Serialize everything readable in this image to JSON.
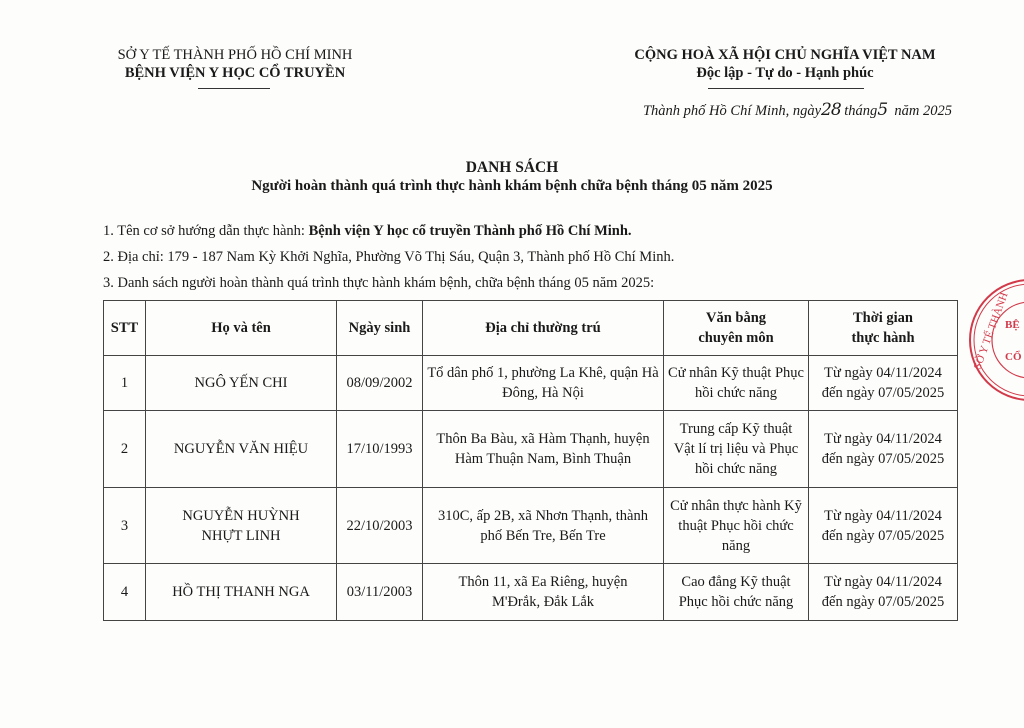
{
  "header": {
    "left_line1": "SỞ Y TẾ THÀNH PHỐ HỒ CHÍ MINH",
    "left_line2": "BỆNH VIỆN Y HỌC CỔ TRUYỀN",
    "right_line1": "CỘNG HOÀ XÃ HỘI CHỦ NGHĨA VIỆT NAM",
    "right_line2": "Độc lập - Tự do - Hạnh phúc",
    "date_prefix": "Thành phố Hồ Chí Minh, ngày",
    "date_day": "28",
    "date_month_label": "tháng",
    "date_month": "5",
    "date_year": "năm 2025"
  },
  "title": {
    "main": "DANH SÁCH",
    "subtitle": "Người hoàn thành quá trình thực hành khám bệnh chữa bệnh tháng 05 năm 2025"
  },
  "items": {
    "item1_label": "1. Tên cơ sở hướng dẫn thực hành: ",
    "item1_value": "Bệnh viện Y học cổ truyền Thành phố Hồ Chí Minh.",
    "item2": "2. Địa chỉ: 179 - 187 Nam Kỳ Khởi Nghĩa, Phường Võ Thị Sáu, Quận 3, Thành phố Hồ Chí Minh.",
    "item3": "3. Danh sách người hoàn thành quá trình thực hành khám bệnh, chữa bệnh tháng 05 năm 2025:"
  },
  "table": {
    "headers": {
      "stt": "STT",
      "name": "Họ và tên",
      "dob": "Ngày sinh",
      "address_label": "Địa chỉ thường trú",
      "degree_1": "Văn bằng",
      "degree_2": "chuyên môn",
      "period_1": "Thời gian",
      "period_2": "thực hành"
    },
    "rows": [
      {
        "stt": "1",
        "name": "NGÔ YẾN CHI",
        "dob": "08/09/2002",
        "address": "Tổ dân phố 1, phường La Khê, quận Hà Đông, Hà Nội",
        "degree": "Cử nhân Kỹ thuật Phục hồi chức năng",
        "period_from": "Từ ngày 04/11/2024",
        "period_to": "đến ngày 07/05/2025"
      },
      {
        "stt": "2",
        "name": "NGUYỄN VĂN HIỆU",
        "dob": "17/10/1993",
        "address": "Thôn Ba Bàu, xã Hàm Thạnh, huyện Hàm Thuận Nam, Bình Thuận",
        "degree": "Trung cấp Kỹ thuật Vật lí trị liệu và Phục hồi chức năng",
        "period_from": "Từ ngày 04/11/2024",
        "period_to": "đến ngày 07/05/2025"
      },
      {
        "stt": "3",
        "name": "NGUYỄN HUỲNH NHỰT LINH",
        "dob": "22/10/2003",
        "address": "310C, ấp 2B, xã Nhơn Thạnh, thành phố Bến Tre, Bến Tre",
        "degree": "Cử nhân thực hành Kỹ thuật Phục hồi chức năng",
        "period_from": "Từ ngày 04/11/2024",
        "period_to": "đến ngày 07/05/2025"
      },
      {
        "stt": "4",
        "name": "HỒ THỊ THANH NGA",
        "dob": "03/11/2003",
        "address": "Thôn 11, xã Ea Riêng, huyện M'Đrắk, Đắk Lắk",
        "degree": "Cao đẳng Kỹ thuật Phục hồi chức năng",
        "period_from": "Từ ngày 04/11/2024",
        "period_to": "đến ngày 07/05/2025"
      }
    ]
  },
  "stamp": {
    "text": "SỞ Y TẾ THÀNH PHỐ ... BỆNH VIỆN ... CỔ TRUYỀN",
    "color": "#d23a4a"
  }
}
